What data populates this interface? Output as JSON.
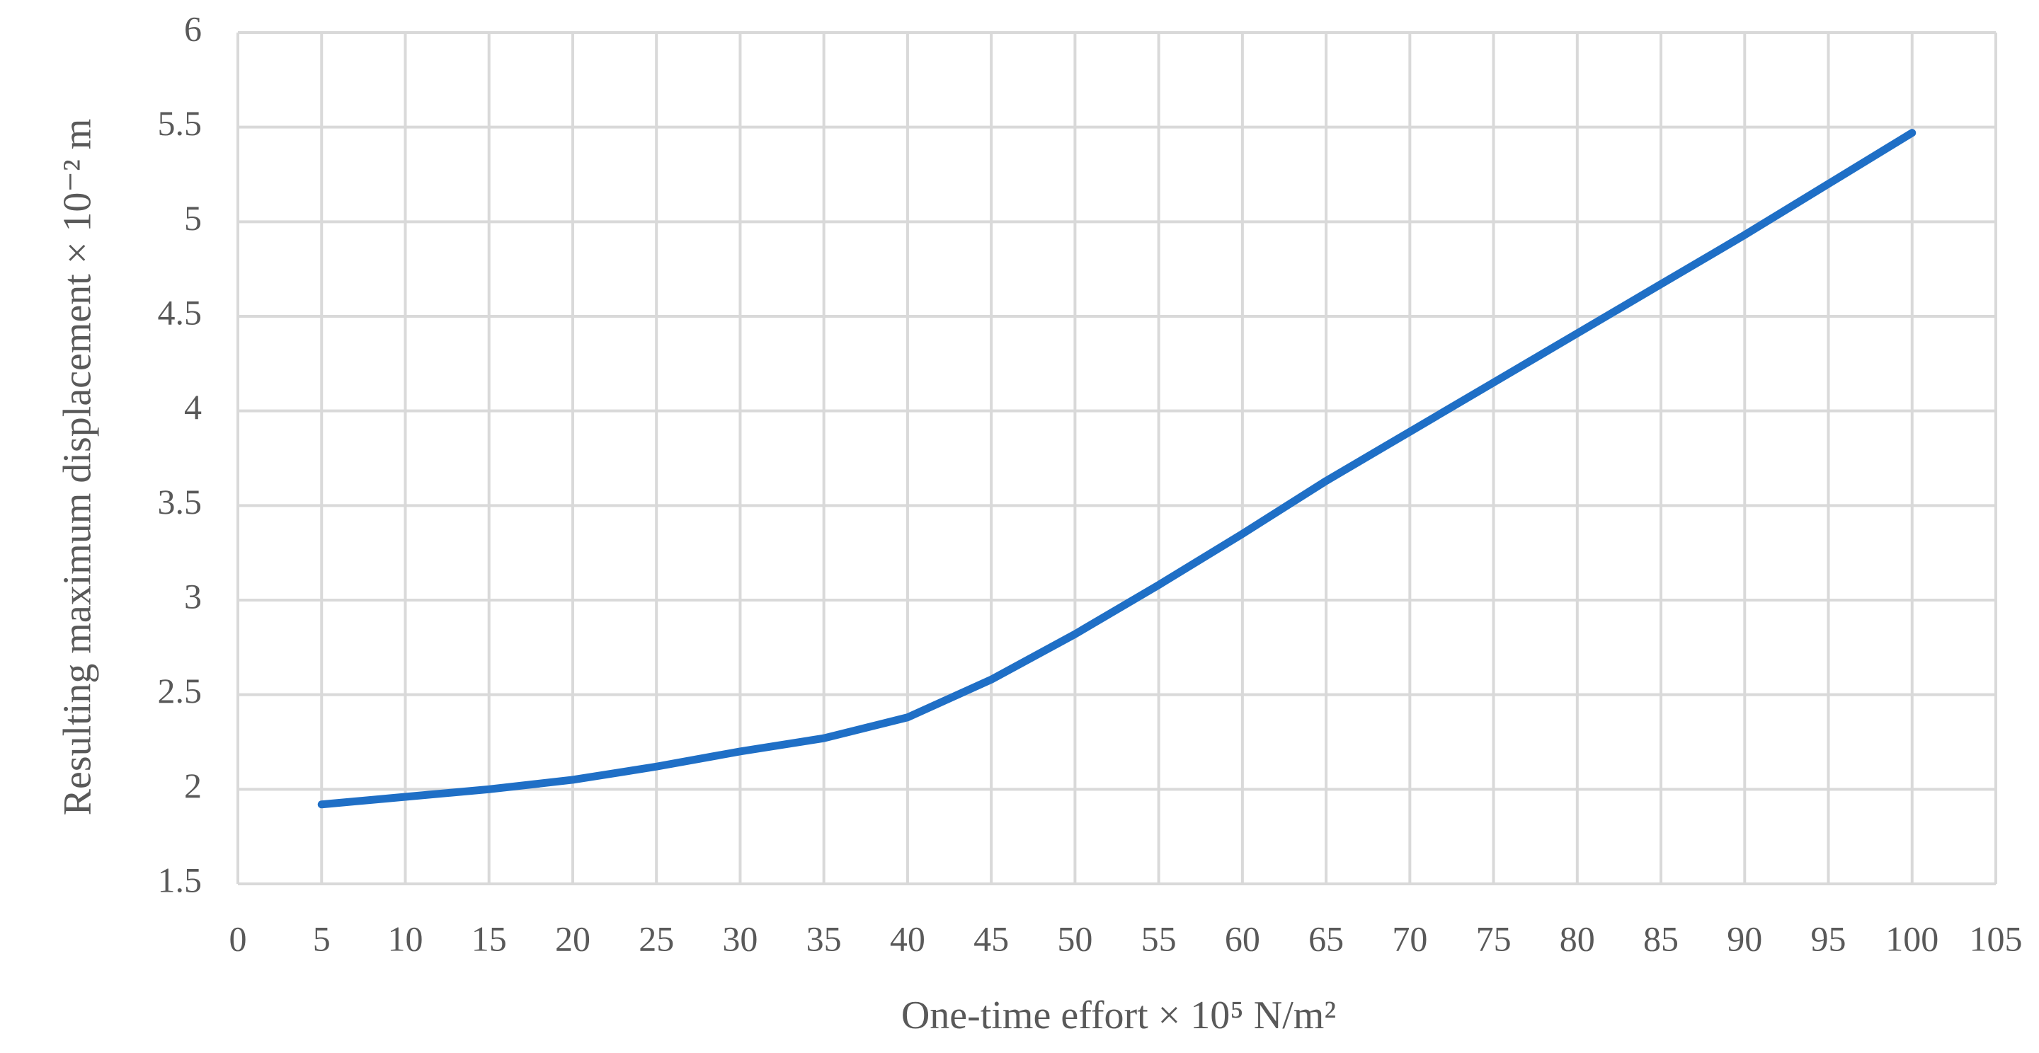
{
  "chart_data": {
    "type": "line",
    "x_label": "One-time effort × 10⁵ N/m²",
    "y_label": "Resulting maximum displacement  × 10⁻² m",
    "x": [
      5,
      10,
      15,
      20,
      25,
      30,
      35,
      40,
      45,
      50,
      55,
      60,
      65,
      70,
      75,
      80,
      85,
      90,
      95,
      100
    ],
    "values": [
      1.92,
      1.96,
      2.0,
      2.05,
      2.12,
      2.2,
      2.27,
      2.38,
      2.58,
      2.82,
      3.08,
      3.35,
      3.63,
      3.89,
      4.15,
      4.41,
      4.67,
      4.93,
      5.2,
      5.47
    ],
    "color": "#1f6fc6",
    "xlim": [
      0,
      105
    ],
    "xticks": [
      0,
      5,
      10,
      15,
      20,
      25,
      30,
      35,
      40,
      45,
      50,
      55,
      60,
      65,
      70,
      75,
      80,
      85,
      90,
      95,
      100,
      105
    ],
    "ylim": [
      1.5,
      6
    ],
    "yticks": [
      1.5,
      2,
      2.5,
      3,
      3.5,
      4,
      4.5,
      5,
      5.5,
      6
    ],
    "grid": true
  }
}
